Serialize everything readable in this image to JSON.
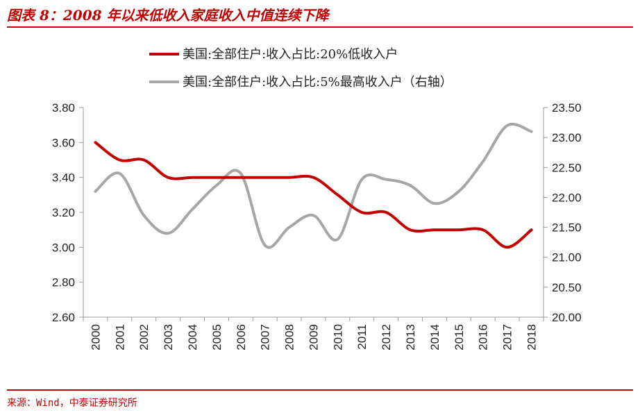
{
  "header": {
    "title": "图表 8：2008 年以来低收入家庭收入中值连续下降"
  },
  "footer": {
    "source": "来源：Wind，中泰证券研究所"
  },
  "chart_data": {
    "type": "line",
    "categories": [
      "2000",
      "2001",
      "2002",
      "2003",
      "2004",
      "2005",
      "2006",
      "2007",
      "2008",
      "2009",
      "2010",
      "2011",
      "2012",
      "2013",
      "2014",
      "2015",
      "2016",
      "2017",
      "2018"
    ],
    "series": [
      {
        "name": "美国:全部住户:收入占比:20%低收入户",
        "axis": "left",
        "color": "#c00000",
        "values": [
          3.6,
          3.5,
          3.5,
          3.4,
          3.4,
          3.4,
          3.4,
          3.4,
          3.4,
          3.4,
          3.3,
          3.2,
          3.2,
          3.1,
          3.1,
          3.1,
          3.1,
          3.0,
          3.1
        ]
      },
      {
        "name": "美国:全部住户:收入占比:5%最高收入户（右轴）",
        "axis": "right",
        "color": "#a6a6a6",
        "values": [
          22.1,
          22.4,
          21.7,
          21.4,
          21.8,
          22.2,
          22.4,
          21.2,
          21.5,
          21.7,
          21.3,
          22.3,
          22.3,
          22.2,
          21.9,
          22.1,
          22.6,
          23.2,
          23.1
        ]
      }
    ],
    "y_left": {
      "ylim": [
        2.6,
        3.8
      ],
      "ticks": [
        "3.80",
        "3.60",
        "3.40",
        "3.20",
        "3.00",
        "2.80",
        "2.60"
      ]
    },
    "y_right": {
      "ylim": [
        20.0,
        23.5
      ],
      "ticks": [
        "23.50",
        "23.00",
        "22.50",
        "22.00",
        "21.50",
        "21.00",
        "20.50",
        "20.00"
      ]
    },
    "legend": "top",
    "grid": false
  }
}
